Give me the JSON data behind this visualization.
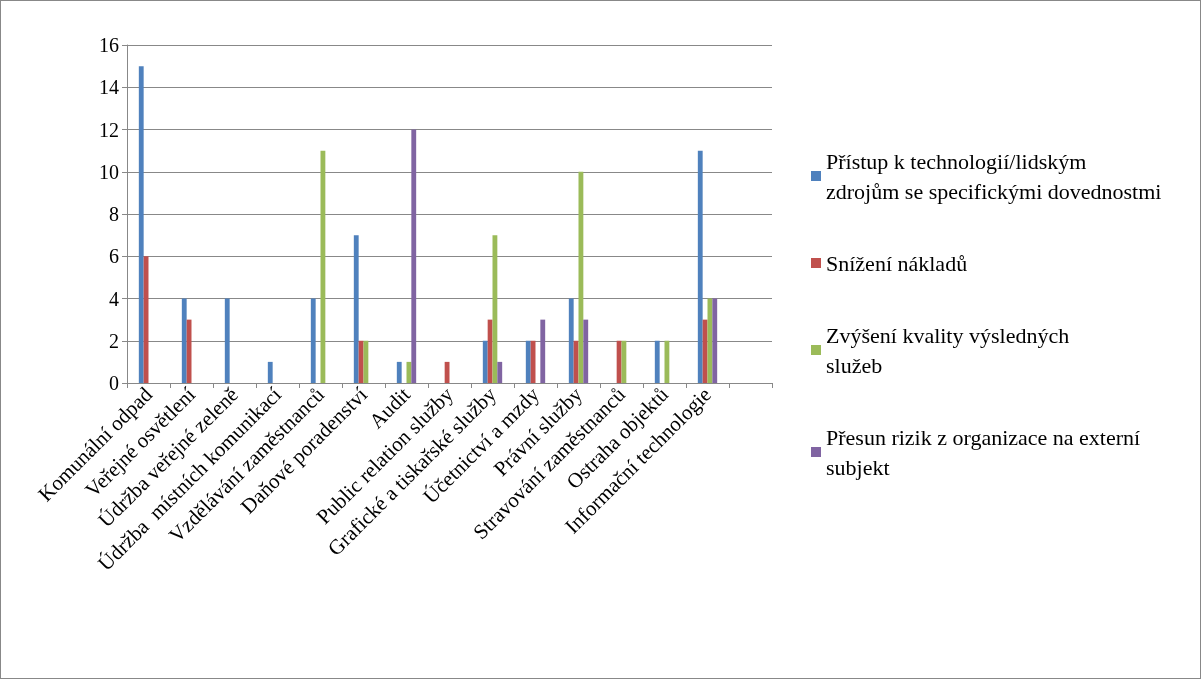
{
  "chart_data": {
    "type": "bar",
    "categories": [
      "Komunální odpad",
      "Veřejné osvětlení",
      "Údržba veřejné zeleně",
      "Údržba  místních komunikací",
      "Vzdělávání zaměstnanců",
      "Daňové poradenství",
      "Audit",
      "Public relation služby",
      "Grafické a tiskařské služby",
      "Účetnictví a mzdy",
      "Právní služby",
      "Stravování zaměstnanců",
      "Ostraha objektů",
      "Informační technologie",
      null
    ],
    "series": [
      {
        "name": "Přístup k technologií/lidským zdrojům se specifickými dovednostmi",
        "color": "#4f81bd",
        "values": [
          15,
          4,
          4,
          1,
          4,
          7,
          1,
          0,
          2,
          2,
          4,
          0,
          2,
          11,
          0
        ]
      },
      {
        "name": "Snížení nákladů",
        "color": "#c0504d",
        "values": [
          6,
          3,
          0,
          0,
          0,
          2,
          0,
          1,
          3,
          2,
          2,
          2,
          0,
          3,
          0
        ]
      },
      {
        "name": "Zvýšení kvality výsledných služeb",
        "color": "#9bbb59",
        "values": [
          0,
          0,
          0,
          0,
          11,
          2,
          1,
          0,
          7,
          0,
          10,
          2,
          2,
          4,
          0
        ]
      },
      {
        "name": "Přesun rizik z organizace na externí subjekt",
        "color": "#8064a2",
        "values": [
          0,
          0,
          0,
          0,
          0,
          0,
          12,
          0,
          1,
          3,
          3,
          0,
          0,
          4,
          0
        ]
      }
    ],
    "ylim": [
      0,
      16
    ],
    "yticks": [
      0,
      2,
      4,
      6,
      8,
      10,
      12,
      14,
      16
    ],
    "grid": "y",
    "legend": "right"
  }
}
